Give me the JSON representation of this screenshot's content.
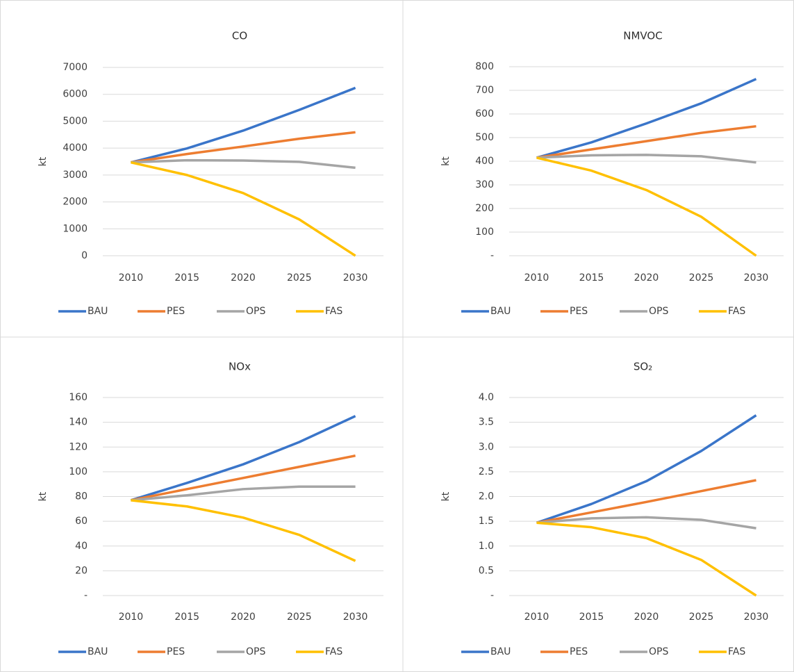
{
  "chart_data": [
    {
      "type": "line",
      "title": "CO",
      "y_label": "kt",
      "categories": [
        "2010",
        "2015",
        "2020",
        "2025",
        "2030"
      ],
      "ylim": [
        0,
        7000
      ],
      "yticks": [
        0,
        1000,
        2000,
        3000,
        4000,
        5000,
        6000,
        7000
      ],
      "grid": true,
      "legend": "bottom",
      "series": [
        {
          "name": "BAU",
          "color": "#3a75c9",
          "values": [
            3470,
            3990,
            4650,
            5420,
            6240
          ]
        },
        {
          "name": "PES",
          "color": "#ed7d31",
          "values": [
            3470,
            3780,
            4060,
            4350,
            4590
          ]
        },
        {
          "name": "OPS",
          "color": "#a5a5a5",
          "values": [
            3470,
            3550,
            3540,
            3490,
            3270
          ]
        },
        {
          "name": "FAS",
          "color": "#ffc000",
          "values": [
            3470,
            3000,
            2330,
            1350,
            0
          ]
        }
      ]
    },
    {
      "type": "line",
      "title": "NMVOC",
      "y_label": "kt",
      "categories": [
        "2010",
        "2015",
        "2020",
        "2025",
        "2030"
      ],
      "ylim": [
        0,
        800
      ],
      "yticks": [
        {
          "value": 0,
          "label": "-"
        },
        100,
        200,
        300,
        400,
        500,
        600,
        700,
        800
      ],
      "grid": true,
      "legend": "bottom",
      "series": [
        {
          "name": "BAU",
          "color": "#3a75c9",
          "values": [
            415,
            480,
            560,
            645,
            748
          ]
        },
        {
          "name": "PES",
          "color": "#ed7d31",
          "values": [
            415,
            450,
            485,
            520,
            548
          ]
        },
        {
          "name": "OPS",
          "color": "#a5a5a5",
          "values": [
            415,
            425,
            427,
            421,
            395
          ]
        },
        {
          "name": "FAS",
          "color": "#ffc000",
          "values": [
            415,
            360,
            278,
            165,
            0
          ]
        }
      ]
    },
    {
      "type": "line",
      "title": "NOx",
      "y_label": "kt",
      "categories": [
        "2010",
        "2015",
        "2020",
        "2025",
        "2030"
      ],
      "ylim": [
        0,
        160
      ],
      "yticks": [
        {
          "value": 0,
          "label": "-"
        },
        20,
        40,
        60,
        80,
        100,
        120,
        140,
        160
      ],
      "grid": true,
      "legend": "bottom",
      "series": [
        {
          "name": "BAU",
          "color": "#3a75c9",
          "values": [
            77,
            91,
            106,
            124,
            145
          ]
        },
        {
          "name": "PES",
          "color": "#ed7d31",
          "values": [
            77,
            86,
            95,
            104,
            113
          ]
        },
        {
          "name": "OPS",
          "color": "#a5a5a5",
          "values": [
            77,
            81,
            86,
            88,
            88
          ]
        },
        {
          "name": "FAS",
          "color": "#ffc000",
          "values": [
            77,
            72,
            63,
            49,
            28
          ]
        }
      ]
    },
    {
      "type": "line",
      "title": "SO₂",
      "y_label": "kt",
      "categories": [
        "2010",
        "2015",
        "2020",
        "2025",
        "2030"
      ],
      "ylim": [
        0,
        4
      ],
      "yticks": [
        {
          "value": 0,
          "label": "-"
        },
        0.5,
        {
          "value": 1,
          "label": "1.0"
        },
        1.5,
        {
          "value": 2,
          "label": "2.0"
        },
        2.5,
        {
          "value": 3,
          "label": "3.0"
        },
        3.5,
        {
          "value": 4,
          "label": "4.0"
        }
      ],
      "grid": true,
      "legend": "bottom",
      "series": [
        {
          "name": "BAU",
          "color": "#3a75c9",
          "values": [
            1.47,
            1.85,
            2.31,
            2.92,
            3.64
          ]
        },
        {
          "name": "PES",
          "color": "#ed7d31",
          "values": [
            1.47,
            1.68,
            1.89,
            2.11,
            2.33
          ]
        },
        {
          "name": "OPS",
          "color": "#a5a5a5",
          "values": [
            1.47,
            1.56,
            1.58,
            1.53,
            1.36
          ]
        },
        {
          "name": "FAS",
          "color": "#ffc000",
          "values": [
            1.47,
            1.38,
            1.16,
            0.72,
            0
          ]
        }
      ]
    }
  ]
}
